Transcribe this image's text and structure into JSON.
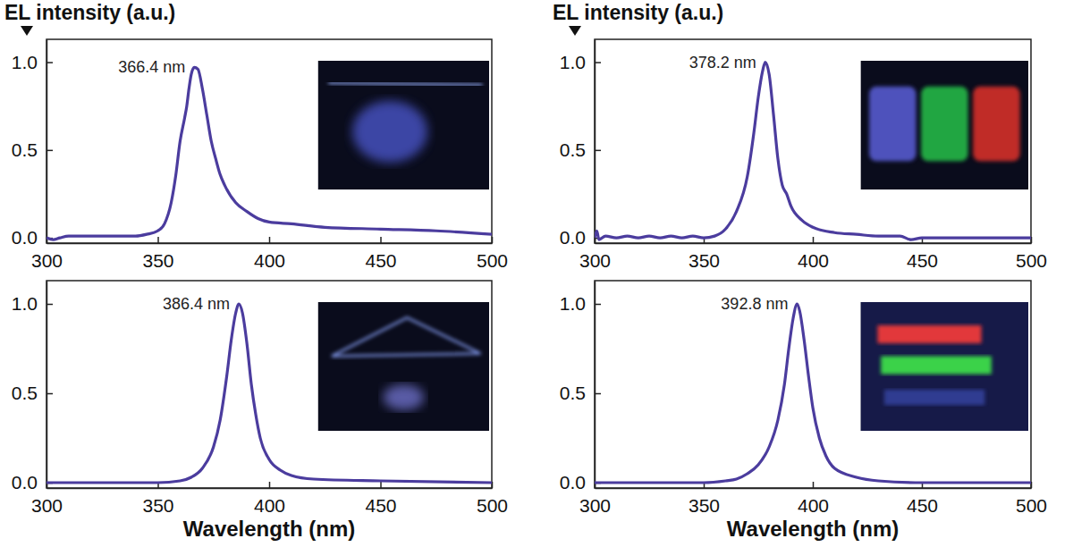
{
  "chart_data": [
    {
      "type": "line",
      "y_label": "EL intensity (a.u.)",
      "color": "#4b3c9e",
      "xlim": [
        300,
        500
      ],
      "ylim": [
        -0.03,
        1.13
      ],
      "xticks": [
        300,
        350,
        400,
        450,
        500
      ],
      "yticks": [
        {
          "value": 0,
          "label": "0.0"
        },
        {
          "value": 0.5,
          "label": "0.5"
        },
        {
          "value": 1,
          "label": "1.0"
        }
      ],
      "annotation": {
        "text": "366.4 nm",
        "x": 366.4,
        "y": 0.97
      },
      "x": [
        300,
        303,
        306,
        310,
        320,
        330,
        340,
        345,
        350,
        353,
        356,
        358,
        360,
        362,
        363,
        364,
        365,
        366.4,
        368,
        370,
        372,
        374,
        376,
        378,
        380,
        385,
        390,
        395,
        400,
        410,
        425,
        450,
        475,
        500
      ],
      "values": [
        0.0,
        -0.01,
        0.0,
        0.01,
        0.01,
        0.01,
        0.01,
        0.02,
        0.04,
        0.08,
        0.2,
        0.35,
        0.55,
        0.68,
        0.75,
        0.85,
        0.93,
        0.97,
        0.96,
        0.85,
        0.7,
        0.55,
        0.45,
        0.36,
        0.3,
        0.2,
        0.15,
        0.11,
        0.09,
        0.08,
        0.06,
        0.05,
        0.04,
        0.02
      ]
    },
    {
      "type": "line",
      "y_label": "EL intensity (a.u.)",
      "color": "#4b3c9e",
      "xlim": [
        300,
        500
      ],
      "ylim": [
        -0.03,
        1.13
      ],
      "xticks": [
        300,
        350,
        400,
        450,
        500
      ],
      "yticks": [
        {
          "value": 0,
          "label": "0.0"
        },
        {
          "value": 0.5,
          "label": "0.5"
        },
        {
          "value": 1,
          "label": "1.0"
        }
      ],
      "annotation": {
        "text": "378.2 nm",
        "x": 378.2,
        "y": 1.0
      },
      "x": [
        300,
        301,
        302,
        305,
        310,
        315,
        320,
        325,
        330,
        335,
        340,
        345,
        350,
        355,
        360,
        365,
        370,
        373,
        375,
        377,
        378.2,
        380,
        382,
        384,
        386,
        388,
        390,
        395,
        400,
        410,
        420,
        430,
        440,
        445,
        450,
        475,
        500
      ],
      "values": [
        0.0,
        0.04,
        -0.01,
        0.01,
        0.0,
        0.01,
        0.0,
        0.01,
        0.0,
        0.01,
        0.0,
        0.01,
        0.0,
        0.01,
        0.05,
        0.15,
        0.35,
        0.6,
        0.8,
        0.95,
        1.0,
        0.93,
        0.7,
        0.45,
        0.3,
        0.25,
        0.18,
        0.1,
        0.06,
        0.03,
        0.02,
        0.01,
        0.01,
        -0.01,
        0.0,
        0.0,
        0.0
      ]
    },
    {
      "type": "line",
      "x_label": "Wavelength (nm)",
      "color": "#4b3c9e",
      "xlim": [
        300,
        500
      ],
      "ylim": [
        -0.03,
        1.13
      ],
      "xticks": [
        300,
        350,
        400,
        450,
        500
      ],
      "yticks": [
        {
          "value": 0,
          "label": "0.0"
        },
        {
          "value": 0.5,
          "label": "0.5"
        },
        {
          "value": 1,
          "label": "1.0"
        }
      ],
      "annotation": {
        "text": "386.4 nm",
        "x": 386.4,
        "y": 1.0
      },
      "x": [
        300,
        350,
        360,
        365,
        370,
        375,
        378,
        381,
        383,
        385,
        386.4,
        388,
        390,
        392,
        394,
        396,
        400,
        405,
        410,
        420,
        450,
        500
      ],
      "values": [
        0.0,
        0.0,
        0.01,
        0.03,
        0.08,
        0.2,
        0.35,
        0.6,
        0.8,
        0.95,
        1.0,
        0.95,
        0.78,
        0.55,
        0.38,
        0.25,
        0.13,
        0.07,
        0.04,
        0.02,
        0.01,
        0.0
      ]
    },
    {
      "type": "line",
      "x_label": "Wavelength (nm)",
      "color": "#4b3c9e",
      "xlim": [
        300,
        500
      ],
      "ylim": [
        -0.03,
        1.13
      ],
      "xticks": [
        300,
        350,
        400,
        450,
        500
      ],
      "yticks": [
        {
          "value": 0,
          "label": "0.0"
        },
        {
          "value": 0.5,
          "label": "0.5"
        },
        {
          "value": 1,
          "label": "1.0"
        }
      ],
      "annotation": {
        "text": "392.8 nm",
        "x": 392.8,
        "y": 1.0
      },
      "x": [
        300,
        350,
        360,
        365,
        370,
        375,
        380,
        384,
        387,
        389,
        391,
        392.8,
        394,
        396,
        398,
        400,
        403,
        406,
        410,
        420,
        430,
        450,
        500
      ],
      "values": [
        0.0,
        0.0,
        0.01,
        0.02,
        0.05,
        0.1,
        0.2,
        0.35,
        0.55,
        0.75,
        0.92,
        1.0,
        0.96,
        0.8,
        0.6,
        0.42,
        0.25,
        0.15,
        0.08,
        0.03,
        0.01,
        0.0,
        0.0
      ]
    }
  ]
}
